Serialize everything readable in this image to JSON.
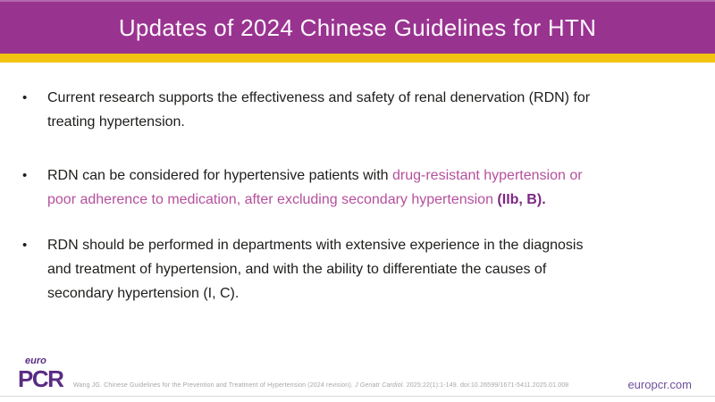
{
  "header": {
    "title": "Updates of 2024 Chinese Guidelines for HTN"
  },
  "bullet_marker": "•",
  "bullets": [
    {
      "lines": [
        [
          {
            "text": "Current research supports the effectiveness and safety of renal denervation (RDN) for",
            "style": "normal"
          }
        ],
        [
          {
            "text": "treating hypertension.",
            "style": "normal"
          }
        ]
      ]
    },
    {
      "lines": [
        [
          {
            "text": "RDN can be considered for hypertensive patients with ",
            "style": "normal"
          },
          {
            "text": "drug-resistant hypertension or",
            "style": "accent"
          }
        ],
        [
          {
            "text": "poor adherence to medication, after excluding secondary hypertension ",
            "style": "accent"
          },
          {
            "text": "(IIb, B).",
            "style": "accent-bold"
          }
        ]
      ]
    },
    {
      "lines": [
        [
          {
            "text": "RDN should be performed in departments with extensive experience in the diagnosis",
            "style": "normal"
          }
        ],
        [
          {
            "text": "and treatment of hypertension, and with the ability to differentiate the causes of",
            "style": "normal"
          }
        ],
        [
          {
            "text": "secondary hypertension (I, C).",
            "style": "normal"
          }
        ]
      ]
    }
  ],
  "footer": {
    "logo_top": "euro",
    "logo_bottom": "PCR",
    "citation": {
      "part1": "Wang JG. Chinese Guidelines for the Prevention and Treatment of Hypertension (2024 revision). ",
      "part2_italic": "J Geriatr Cardiol.",
      "part3": " 2025;22(1):1-149. doi:10.26599/1671-5411.2025.01.008"
    },
    "website": "europcr.com"
  },
  "colors": {
    "header_bg": "#993390",
    "header_top_edge": "#b469ad",
    "title_text": "#fdf8fc",
    "stripe": "#f2c412",
    "text": "#1d1d1b",
    "accent": "#b5509c",
    "accent_bold": "#7c2982",
    "logo": "#582c83",
    "citation": "#a6a6a6",
    "link": "#6f4f9e"
  }
}
